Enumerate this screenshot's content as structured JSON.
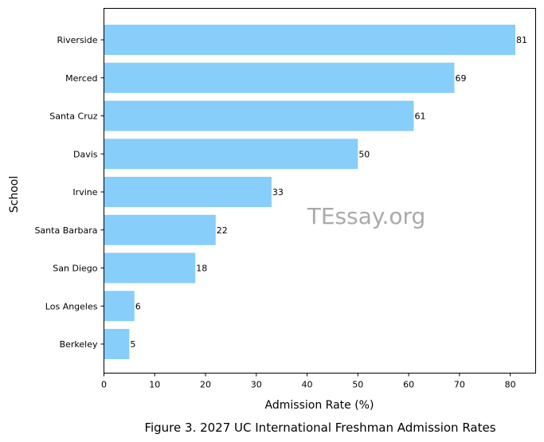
{
  "chart_data": {
    "type": "bar",
    "orientation": "horizontal",
    "categories": [
      "Riverside",
      "Merced",
      "Santa Cruz",
      "Davis",
      "Irvine",
      "Santa Barbara",
      "San Diego",
      "Los Angeles",
      "Berkeley"
    ],
    "values": [
      81,
      69,
      61,
      50,
      33,
      22,
      18,
      6,
      5
    ],
    "xlabel": "Admission Rate (%)",
    "ylabel": "School",
    "xlim": [
      0,
      85
    ],
    "xticks": [
      0,
      10,
      20,
      30,
      40,
      50,
      60,
      70,
      80
    ],
    "bar_color": "#87cefa",
    "data_labels": true,
    "grid": false,
    "caption": "Figure 3. 2027 UC International Freshman Admission Rates",
    "watermark": "TEssay.org"
  }
}
